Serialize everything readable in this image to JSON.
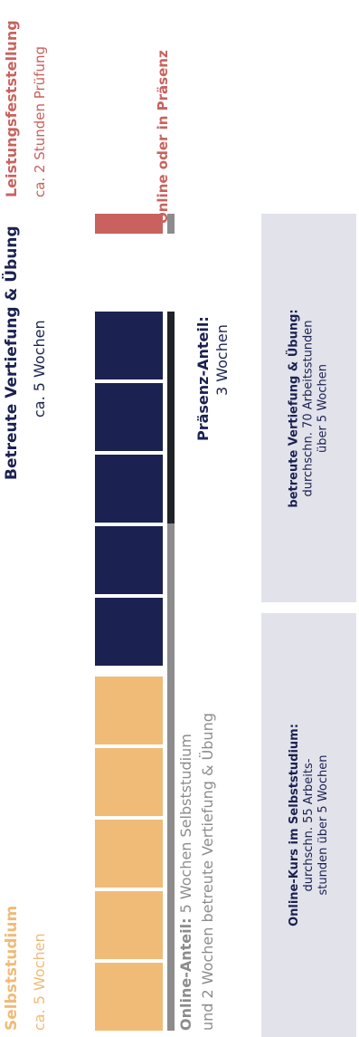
{
  "colors": {
    "selbststudium": "#f0bb77",
    "vertiefung": "#1b2150",
    "pruefung": "#c9625e",
    "online_bar": "#8c8c8c",
    "praesenz_bar": "#1f2227",
    "box": "#e2e2eb"
  },
  "phases": {
    "selbst": {
      "title": "Selbststudium",
      "duration": "ca. 5 Wochen"
    },
    "vertiefung": {
      "title": "Betreute Vertiefung & Übung",
      "duration": "ca. 5 Wochen"
    },
    "pruefung": {
      "title": "Leistungsfeststellung",
      "duration": "ca. 2 Stunden Prüfung",
      "mode": "Online oder in Präsenz"
    }
  },
  "shares": {
    "online": {
      "label": "Online-Anteil:",
      "text1": " 5 Wochen Selbststudium",
      "text2": "und 2 Wochen betreute Vertiefung & Übung"
    },
    "praesenz": {
      "label": "Präsenz-Anteil:",
      "text": "3 Wochen"
    }
  },
  "boxes": {
    "online": {
      "title": "Online-Kurs im Selbststudium:",
      "line1": "durchschn. 55 Arbeits-",
      "line2": "stunden über 5 Wochen"
    },
    "vertiefung": {
      "title": "betreute Vertiefung & Übung:",
      "line1": "durchschn. 70 Arbeitsstunden",
      "line2": "über 5 Wochen"
    }
  }
}
